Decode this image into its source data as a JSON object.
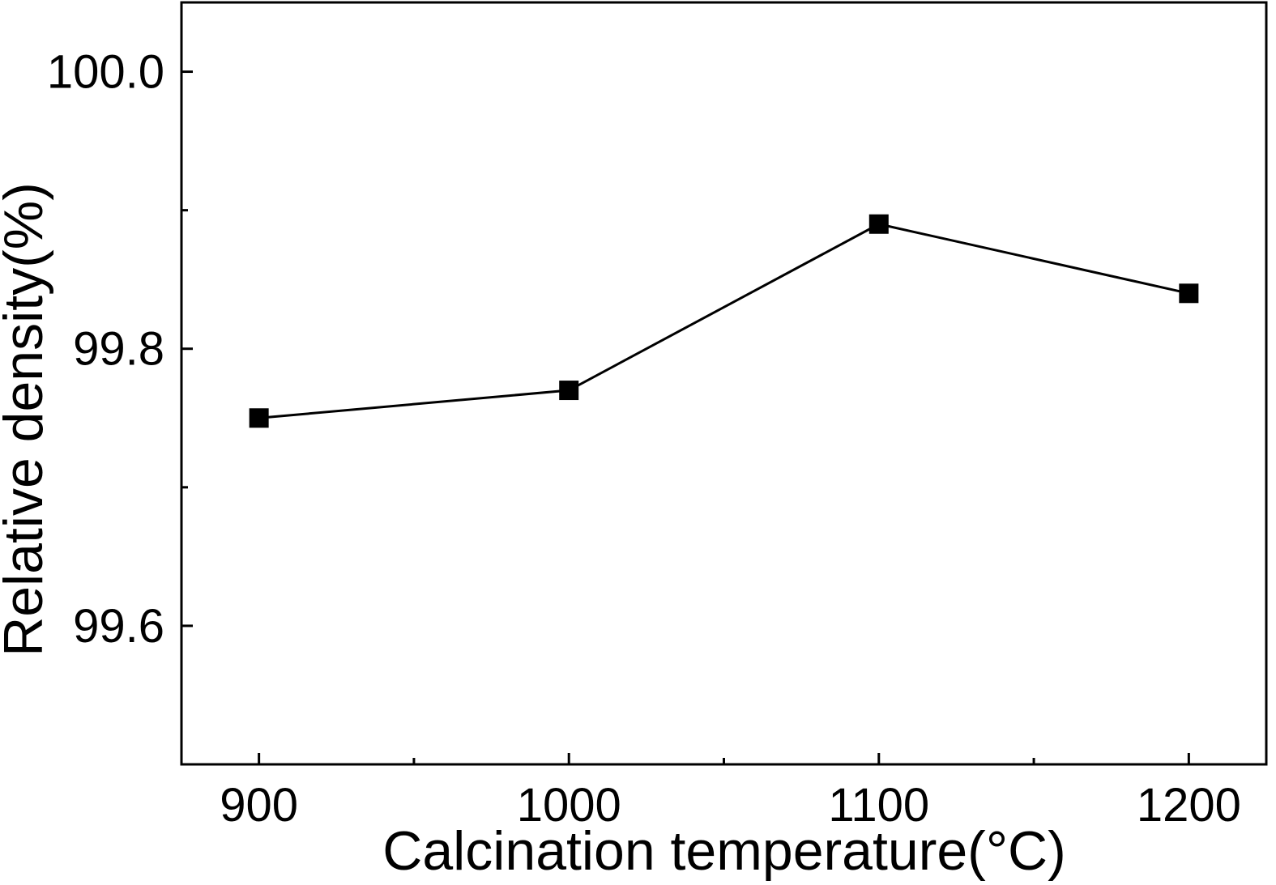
{
  "chart_data": {
    "type": "line",
    "xlabel": "Calcination temperature(°C)",
    "ylabel": "Relative density(%)",
    "x": [
      900,
      1000,
      1100,
      1200
    ],
    "series": [
      {
        "values": [
          99.75,
          99.77,
          99.89,
          99.84
        ],
        "marker": "square",
        "color": "#000000"
      }
    ],
    "xlim": [
      875,
      1225
    ],
    "ylim": [
      99.5,
      100.05
    ],
    "x_major_ticks": [
      900,
      1000,
      1100,
      1200
    ],
    "x_tick_labels": [
      "900",
      "1000",
      "1100",
      "1200"
    ],
    "x_minor_ticks": [
      950,
      1050,
      1150
    ],
    "y_major_ticks": [
      99.6,
      99.8,
      100.0
    ],
    "y_tick_labels": [
      "99.6",
      "99.8",
      "100.0"
    ],
    "y_minor_ticks": [
      99.7,
      99.9
    ],
    "grid": false,
    "legend": "none"
  }
}
